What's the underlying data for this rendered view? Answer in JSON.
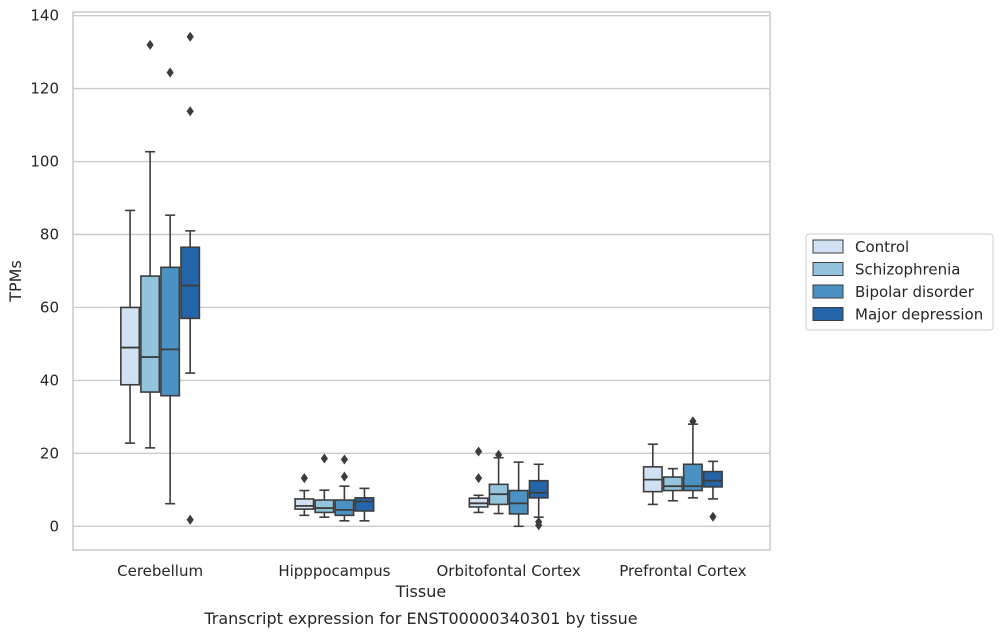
{
  "chart_data": {
    "type": "box",
    "caption": "Transcript expression for ENST00000340301 by tissue",
    "xlabel": "Tissue",
    "ylabel": "TPMs",
    "ylim": [
      -6.5,
      141
    ],
    "yticks": [
      0,
      20,
      40,
      60,
      80,
      100,
      120,
      140
    ],
    "ytick_labels": [
      "0",
      "20",
      "40",
      "60",
      "80",
      "100",
      "120",
      "140"
    ],
    "grid": "horizontal",
    "legend_position": "right",
    "categories": [
      "Cerebellum",
      "Hipppocampus",
      "Orbitofontal Cortex",
      "Prefrontal Cortex"
    ],
    "series": [
      {
        "name": "Control",
        "color": "#cfe1f2",
        "boxes": [
          {
            "whisker_low": 22.8,
            "q1": 38.8,
            "median": 49.0,
            "q3": 60.0,
            "whisker_high": 86.6,
            "outliers": []
          },
          {
            "whisker_low": 3.0,
            "q1": 4.7,
            "median": 5.6,
            "q3": 7.5,
            "whisker_high": 9.8,
            "outliers": [
              13.2
            ]
          },
          {
            "whisker_low": 3.8,
            "q1": 5.3,
            "median": 6.3,
            "q3": 7.7,
            "whisker_high": 8.5,
            "outliers": [
              13.2,
              20.5
            ]
          },
          {
            "whisker_low": 6.0,
            "q1": 9.5,
            "median": 12.8,
            "q3": 16.3,
            "whisker_high": 22.5,
            "outliers": []
          }
        ]
      },
      {
        "name": "Schizophrenia",
        "color": "#93c4de",
        "boxes": [
          {
            "whisker_low": 21.5,
            "q1": 36.8,
            "median": 46.4,
            "q3": 68.6,
            "whisker_high": 102.7,
            "outliers": [
              132.0
            ]
          },
          {
            "whisker_low": 2.5,
            "q1": 3.8,
            "median": 5.0,
            "q3": 7.2,
            "whisker_high": 9.9,
            "outliers": [
              18.6
            ]
          },
          {
            "whisker_low": 3.5,
            "q1": 6.0,
            "median": 8.8,
            "q3": 11.5,
            "whisker_high": 18.8,
            "outliers": [
              19.6
            ]
          },
          {
            "whisker_low": 7.0,
            "q1": 9.8,
            "median": 11.0,
            "q3": 13.5,
            "whisker_high": 15.8,
            "outliers": []
          }
        ]
      },
      {
        "name": "Bipolar disorder",
        "color": "#4a91c4",
        "boxes": [
          {
            "whisker_low": 6.2,
            "q1": 35.8,
            "median": 48.5,
            "q3": 71.0,
            "whisker_high": 85.3,
            "outliers": [
              124.4
            ]
          },
          {
            "whisker_low": 1.5,
            "q1": 3.0,
            "median": 4.5,
            "q3": 7.2,
            "whisker_high": 11.0,
            "outliers": [
              13.6,
              18.3
            ]
          },
          {
            "whisker_low": 0.0,
            "q1": 3.4,
            "median": 6.3,
            "q3": 9.8,
            "whisker_high": 17.6,
            "outliers": []
          },
          {
            "whisker_low": 7.8,
            "q1": 9.8,
            "median": 11.0,
            "q3": 17.0,
            "whisker_high": 28.0,
            "outliers": [
              28.8
            ]
          }
        ]
      },
      {
        "name": "Major depression",
        "color": "#2464a9",
        "boxes": [
          {
            "whisker_low": 42.0,
            "q1": 57.0,
            "median": 66.0,
            "q3": 76.5,
            "whisker_high": 81.0,
            "outliers": [
              113.8,
              134.2,
              1.8
            ]
          },
          {
            "whisker_low": 1.5,
            "q1": 4.2,
            "median": 6.8,
            "q3": 7.8,
            "whisker_high": 10.4,
            "outliers": []
          },
          {
            "whisker_low": 2.5,
            "q1": 7.8,
            "median": 9.2,
            "q3": 12.5,
            "whisker_high": 17.0,
            "outliers": [
              1.2,
              0.3
            ]
          },
          {
            "whisker_low": 7.5,
            "q1": 10.8,
            "median": 12.5,
            "q3": 15.0,
            "whisker_high": 17.8,
            "outliers": [
              2.6
            ]
          }
        ]
      }
    ]
  }
}
